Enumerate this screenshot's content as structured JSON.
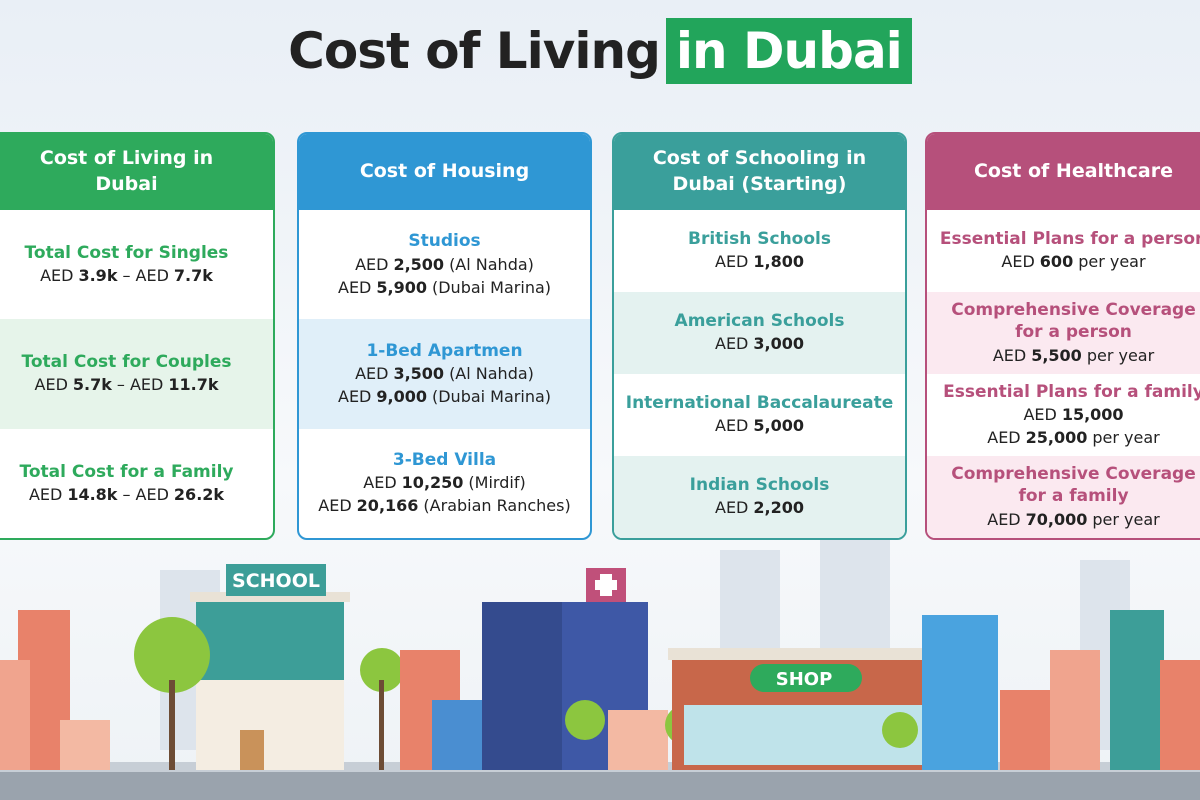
{
  "title": {
    "main": "Cost of Living",
    "highlight": "in Dubai"
  },
  "cards": [
    {
      "header": "Cost of Living in Dubai",
      "color": "#2eaa5c",
      "tint": "#e6f4ea",
      "rows": [
        {
          "heading": "Total Cost for Singles",
          "lines": [
            [
              {
                "text": "AED"
              },
              {
                "text": "3.9k",
                "bold": true
              },
              {
                "text": "– AED"
              },
              {
                "text": "7.7k",
                "bold": true
              }
            ]
          ]
        },
        {
          "heading": "Total Cost for Couples",
          "lines": [
            [
              {
                "text": "AED"
              },
              {
                "text": "5.7k",
                "bold": true
              },
              {
                "text": "– AED"
              },
              {
                "text": "11.7k",
                "bold": true
              }
            ]
          ]
        },
        {
          "heading": "Total Cost for a Family",
          "lines": [
            [
              {
                "text": "AED"
              },
              {
                "text": "14.8k",
                "bold": true
              },
              {
                "text": "– AED"
              },
              {
                "text": "26.2k",
                "bold": true
              }
            ]
          ]
        }
      ]
    },
    {
      "header": "Cost of Housing",
      "color": "#2f97d4",
      "tint": "#e0eff9",
      "rows": [
        {
          "heading": "Studios",
          "lines": [
            [
              {
                "text": "AED"
              },
              {
                "text": "2,500",
                "bold": true
              },
              {
                "text": "(Al Nahda)"
              }
            ],
            [
              {
                "text": "AED"
              },
              {
                "text": "5,900",
                "bold": true
              },
              {
                "text": "(Dubai Marina)"
              }
            ]
          ]
        },
        {
          "heading": "1-Bed Apartmen",
          "lines": [
            [
              {
                "text": "AED"
              },
              {
                "text": "3,500",
                "bold": true
              },
              {
                "text": "(Al Nahda)"
              }
            ],
            [
              {
                "text": "AED"
              },
              {
                "text": "9,000",
                "bold": true
              },
              {
                "text": "(Dubai Marina)"
              }
            ]
          ]
        },
        {
          "heading": "3-Bed Villa",
          "lines": [
            [
              {
                "text": "AED"
              },
              {
                "text": "10,250",
                "bold": true
              },
              {
                "text": "(Mirdif)"
              }
            ],
            [
              {
                "text": "AED"
              },
              {
                "text": "20,166",
                "bold": true
              },
              {
                "text": "(Arabian Ranches)"
              }
            ]
          ]
        }
      ]
    },
    {
      "header": "Cost of Schooling in Dubai (Starting)",
      "color": "#3a9f9b",
      "tint": "#e4f2f0",
      "rows": [
        {
          "heading": "British Schools",
          "lines": [
            [
              {
                "text": "AED"
              },
              {
                "text": "1,800",
                "bold": true
              }
            ]
          ]
        },
        {
          "heading": "American Schools",
          "lines": [
            [
              {
                "text": "AED"
              },
              {
                "text": "3,000",
                "bold": true
              }
            ]
          ]
        },
        {
          "heading": "International Baccalaureate",
          "lines": [
            [
              {
                "text": "AED"
              },
              {
                "text": "5,000",
                "bold": true
              }
            ]
          ]
        },
        {
          "heading": "Indian Schools",
          "lines": [
            [
              {
                "text": "AED"
              },
              {
                "text": "2,200",
                "bold": true
              }
            ]
          ]
        }
      ]
    },
    {
      "header": "Cost of Healthcare",
      "color": "#b6507b",
      "tint": "#fbe9f0",
      "rows": [
        {
          "heading": "Essential Plans for a person",
          "lines": [
            [
              {
                "text": "AED"
              },
              {
                "text": "600",
                "bold": true
              },
              {
                "text": "per year"
              }
            ]
          ]
        },
        {
          "heading": "Comprehensive Coverage for a person",
          "lines": [
            [
              {
                "text": "AED"
              },
              {
                "text": "5,500",
                "bold": true
              },
              {
                "text": "per year"
              }
            ]
          ]
        },
        {
          "heading": "Essential Plans for a family",
          "lines": [
            [
              {
                "text": "AED"
              },
              {
                "text": "15,000",
                "bold": true
              }
            ],
            [
              {
                "text": "AED"
              },
              {
                "text": "25,000",
                "bold": true
              },
              {
                "text": "per year"
              }
            ]
          ]
        },
        {
          "heading": "Comprehensive Coverage for a family",
          "lines": [
            [
              {
                "text": "AED"
              },
              {
                "text": "70,000",
                "bold": true
              },
              {
                "text": "per year"
              }
            ]
          ]
        }
      ]
    }
  ],
  "scene": {
    "school_sign": "SCHOOL",
    "shop_sign": "SHOP"
  }
}
